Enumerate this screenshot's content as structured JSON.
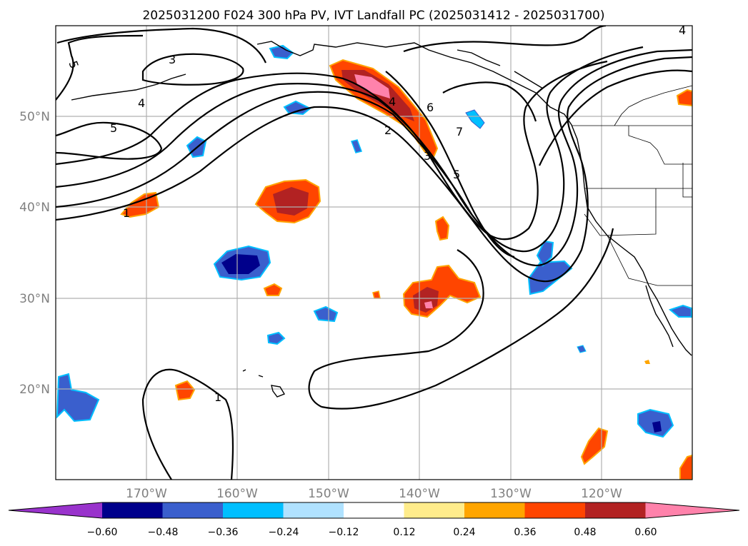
{
  "title": "2025031200 F024 300 hPa PV, IVT Landfall PC (2025031412 - 2025031700)",
  "map": {
    "lat_labels": [
      "50°N",
      "40°N",
      "30°N",
      "20°N"
    ],
    "lon_labels": [
      "170°W",
      "160°W",
      "150°W",
      "140°W",
      "130°W",
      "120°W"
    ],
    "contour_labels": [
      "5",
      "3",
      "4",
      "5",
      "1",
      "4",
      "2",
      "3",
      "6",
      "7",
      "5",
      "1",
      "4"
    ]
  },
  "colorbar": {
    "colors": [
      "#9933cc",
      "#00008b",
      "#3a5fcd",
      "#00bfff",
      "#b0e2ff",
      "#ffffff",
      "#ffec8b",
      "#ffa500",
      "#ff4500",
      "#b22222",
      "#ff82ab"
    ],
    "tick_labels": [
      "−0.60",
      "−0.48",
      "−0.36",
      "−0.24",
      "−0.12",
      "0.12",
      "0.24",
      "0.36",
      "0.48",
      "0.60"
    ]
  }
}
